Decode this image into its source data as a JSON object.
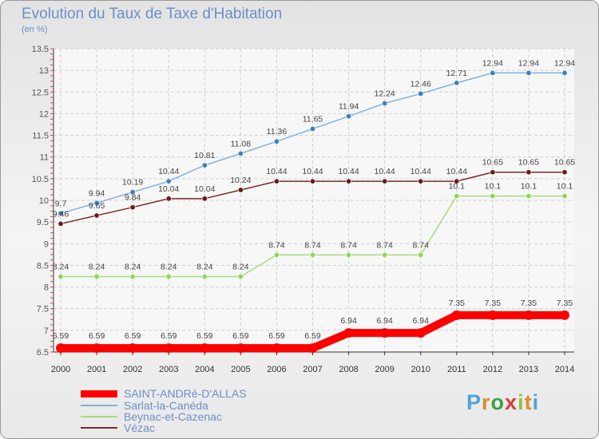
{
  "title": "Evolution du Taux de Taxe d'Habitation",
  "subtitle": "(en %)",
  "logo": {
    "text": "Proxiti",
    "letter_colors": [
      "#4fa3dc",
      "#e08a2a",
      "#3f9f3f",
      "#d93b3b",
      "#8fbf3f",
      "#e08a2a",
      "#4fa3dc"
    ]
  },
  "chart_data": {
    "type": "line",
    "x": [
      2000,
      2001,
      2002,
      2003,
      2004,
      2005,
      2006,
      2007,
      2008,
      2009,
      2010,
      2011,
      2012,
      2013,
      2014
    ],
    "ylim": [
      6.5,
      13.5
    ],
    "yticks": [
      "6.5",
      "7",
      "7.5",
      "8",
      "8.5",
      "9",
      "9.5",
      "10",
      "10.5",
      "11",
      "11.5",
      "12",
      "12.5",
      "13",
      "13.5"
    ],
    "grid": true,
    "series": [
      {
        "name": "SAINT-ANDRé-D'ALLAS",
        "color": "#ff0000",
        "marker": "#ff0000",
        "width": "thick",
        "values": [
          6.59,
          6.59,
          6.59,
          6.59,
          6.59,
          6.59,
          6.59,
          6.59,
          6.94,
          6.94,
          6.94,
          7.35,
          7.35,
          7.35,
          7.35
        ],
        "labels": [
          "6.59",
          "6.59",
          "6.59",
          "6.59",
          "6.59",
          "6.59",
          "6.59",
          "6.59",
          "6.94",
          "6.94",
          "6.94",
          "7.35",
          "7.35",
          "7.35",
          "7.35"
        ]
      },
      {
        "name": "Sarlat-la-Canéda",
        "color": "#7fb2df",
        "marker": "#3b7fc4",
        "width": "thin",
        "values": [
          9.7,
          9.94,
          10.19,
          10.44,
          10.81,
          11.08,
          11.36,
          11.65,
          11.94,
          12.24,
          12.46,
          12.71,
          12.94,
          12.94,
          12.94
        ],
        "labels": [
          "9.7",
          "9.94",
          "10.19",
          "10.44",
          "10.81",
          "11.08",
          "11.36",
          "11.65",
          "11.94",
          "12.24",
          "12.46",
          "12.71",
          "12.94",
          "12.94",
          "12.94"
        ]
      },
      {
        "name": "Beynac-et-Cazenac",
        "color": "#a6dc79",
        "marker": "#8fd45c",
        "width": "thin",
        "values": [
          8.24,
          8.24,
          8.24,
          8.24,
          8.24,
          8.24,
          8.74,
          8.74,
          8.74,
          8.74,
          8.74,
          10.1,
          10.1,
          10.1,
          10.1
        ],
        "labels": [
          "8.24",
          "8.24",
          "8.24",
          "8.24",
          "8.24",
          "8.24",
          "8.74",
          "8.74",
          "8.74",
          "8.74",
          "8.74",
          "10.1",
          "10.1",
          "10.1",
          "10.1"
        ]
      },
      {
        "name": "Vézac",
        "color": "#7a2a2a",
        "marker": "#6b1a1a",
        "width": "thin",
        "values": [
          9.46,
          9.65,
          9.84,
          10.04,
          10.04,
          10.24,
          10.44,
          10.44,
          10.44,
          10.44,
          10.44,
          10.44,
          10.65,
          10.65,
          10.65
        ],
        "labels": [
          "9.46",
          "9.65",
          "9.84",
          "10.04",
          "10.04",
          "10.24",
          "10.44",
          "10.44",
          "10.44",
          "10.44",
          "10.44",
          "10.44",
          "10.65",
          "10.65",
          "10.65"
        ]
      }
    ]
  }
}
